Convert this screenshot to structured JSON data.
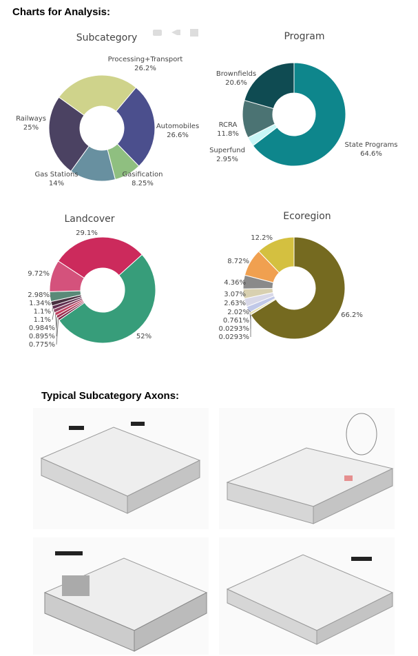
{
  "header": {
    "title": "Charts for Analysis:"
  },
  "chart_data": [
    {
      "type": "pie",
      "title": "Subcategory",
      "categories": [
        "Automobiles",
        "Gasification",
        "Gas Stations",
        "Railways",
        "Processing+Transport"
      ],
      "values": [
        26.6,
        8.25,
        14,
        25,
        26.2
      ],
      "value_labels": [
        "26.6%",
        "8.25%",
        "14%",
        "25%",
        "26.2%"
      ],
      "colors": [
        "#4b4f8d",
        "#8fbf80",
        "#6890a0",
        "#4b4262",
        "#cfd38b"
      ]
    },
    {
      "type": "pie",
      "title": "Program",
      "categories": [
        "State Programs",
        "Superfund",
        "RCRA",
        "Brownfields"
      ],
      "values": [
        64.6,
        2.95,
        11.8,
        20.6
      ],
      "value_labels": [
        "64.6%",
        "2.95%",
        "11.8%",
        "20.6%"
      ],
      "colors": [
        "#0e868c",
        "#c8f6f6",
        "#4b7373",
        "#0f4b52"
      ]
    },
    {
      "type": "pie",
      "title": "Landcover",
      "values": [
        52,
        0.775,
        0.895,
        0.984,
        1.1,
        1.1,
        1.34,
        2.98,
        9.72,
        29.1
      ],
      "value_labels": [
        "52%",
        "0.775%",
        "0.895%",
        "0.984%",
        "1.1%",
        "1.1%",
        "1.34%",
        "2.98%",
        "9.72%",
        "29.1%"
      ],
      "colors": [
        "#379d7a",
        "#7a2a4a",
        "#a03050",
        "#c04060",
        "#8a4060",
        "#603050",
        "#4a3040",
        "#5a8a78",
        "#d4527c",
        "#cc2a5c"
      ]
    },
    {
      "type": "pie",
      "title": "Ecoregion",
      "values": [
        66.2,
        0.0293,
        0.0293,
        0.761,
        2.02,
        2.63,
        3.07,
        4.36,
        8.72,
        12.2
      ],
      "value_labels": [
        "66.2%",
        "0.0293%",
        "0.0293%",
        "0.761%",
        "2.02%",
        "2.63%",
        "3.07%",
        "4.36%",
        "8.72%",
        "12.2%"
      ],
      "colors": [
        "#756a20",
        "#c8c080",
        "#e0d8a0",
        "#e6e0b0",
        "#c0c8e8",
        "#d8d8e8",
        "#d8d0b0",
        "#8a8a8a",
        "#f0a050",
        "#d4c040"
      ]
    }
  ],
  "section": {
    "title": "Typical Subcategory Axons:"
  }
}
